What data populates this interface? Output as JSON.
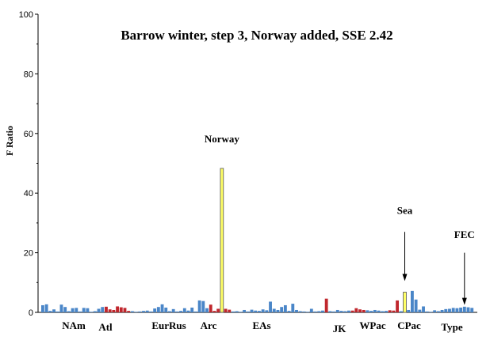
{
  "chart_data": {
    "type": "bar",
    "title": "Barrow winter, step 3, Norway added, SSE 2.42",
    "ylabel": "F Ratio",
    "xlabel": "",
    "ylim": [
      0,
      100
    ],
    "yticks": [
      0,
      20,
      40,
      60,
      80,
      100
    ],
    "grid": false,
    "colors": {
      "blue": "#4a86c8",
      "red": "#c0272d",
      "yellow": "#ffff66",
      "outline": "#555555"
    },
    "groups": [
      "NAm",
      "Atl",
      "EurRus",
      "Arc",
      "EAs",
      "JK",
      "WPac",
      "CPac",
      "Type"
    ],
    "bars": [
      {
        "v": 2.4,
        "c": "blue"
      },
      {
        "v": 2.7,
        "c": "blue"
      },
      {
        "v": 0.5,
        "c": "blue"
      },
      {
        "v": 1.0,
        "c": "blue"
      },
      {
        "v": 0.3,
        "c": "blue"
      },
      {
        "v": 2.6,
        "c": "blue"
      },
      {
        "v": 1.8,
        "c": "blue"
      },
      {
        "v": 0.4,
        "c": "blue"
      },
      {
        "v": 1.4,
        "c": "blue"
      },
      {
        "v": 1.5,
        "c": "blue"
      },
      {
        "v": 0.3,
        "c": "blue"
      },
      {
        "v": 1.5,
        "c": "blue"
      },
      {
        "v": 1.4,
        "c": "blue"
      },
      {
        "v": 0.2,
        "c": "blue"
      },
      {
        "v": 0.4,
        "c": "blue"
      },
      {
        "v": 1.2,
        "c": "blue"
      },
      {
        "v": 1.8,
        "c": "blue"
      },
      {
        "v": 1.9,
        "c": "red"
      },
      {
        "v": 1.0,
        "c": "red"
      },
      {
        "v": 0.8,
        "c": "red"
      },
      {
        "v": 2.0,
        "c": "red"
      },
      {
        "v": 1.7,
        "c": "red"
      },
      {
        "v": 1.5,
        "c": "red"
      },
      {
        "v": 0.5,
        "c": "red"
      },
      {
        "v": 0.4,
        "c": "blue"
      },
      {
        "v": 0.2,
        "c": "blue"
      },
      {
        "v": 0.3,
        "c": "blue"
      },
      {
        "v": 0.5,
        "c": "blue"
      },
      {
        "v": 0.6,
        "c": "blue"
      },
      {
        "v": 0.3,
        "c": "blue"
      },
      {
        "v": 1.3,
        "c": "blue"
      },
      {
        "v": 1.8,
        "c": "blue"
      },
      {
        "v": 2.7,
        "c": "blue"
      },
      {
        "v": 1.6,
        "c": "blue"
      },
      {
        "v": 0.4,
        "c": "blue"
      },
      {
        "v": 1.1,
        "c": "blue"
      },
      {
        "v": 0.3,
        "c": "blue"
      },
      {
        "v": 0.5,
        "c": "blue"
      },
      {
        "v": 1.4,
        "c": "blue"
      },
      {
        "v": 0.6,
        "c": "blue"
      },
      {
        "v": 1.6,
        "c": "blue"
      },
      {
        "v": 0.3,
        "c": "blue"
      },
      {
        "v": 4.0,
        "c": "blue"
      },
      {
        "v": 3.8,
        "c": "blue"
      },
      {
        "v": 1.4,
        "c": "blue"
      },
      {
        "v": 2.6,
        "c": "red"
      },
      {
        "v": 0.5,
        "c": "red"
      },
      {
        "v": 1.2,
        "c": "red"
      },
      {
        "v": 48.3,
        "c": "yellow"
      },
      {
        "v": 1.2,
        "c": "red"
      },
      {
        "v": 0.9,
        "c": "red"
      },
      {
        "v": 0.3,
        "c": "blue"
      },
      {
        "v": 0.4,
        "c": "blue"
      },
      {
        "v": 0.2,
        "c": "blue"
      },
      {
        "v": 0.8,
        "c": "blue"
      },
      {
        "v": 0.3,
        "c": "blue"
      },
      {
        "v": 0.9,
        "c": "blue"
      },
      {
        "v": 0.6,
        "c": "blue"
      },
      {
        "v": 0.5,
        "c": "blue"
      },
      {
        "v": 1.0,
        "c": "blue"
      },
      {
        "v": 0.7,
        "c": "blue"
      },
      {
        "v": 3.6,
        "c": "blue"
      },
      {
        "v": 1.2,
        "c": "blue"
      },
      {
        "v": 0.8,
        "c": "blue"
      },
      {
        "v": 1.8,
        "c": "blue"
      },
      {
        "v": 2.4,
        "c": "blue"
      },
      {
        "v": 0.5,
        "c": "blue"
      },
      {
        "v": 2.9,
        "c": "blue"
      },
      {
        "v": 0.8,
        "c": "blue"
      },
      {
        "v": 0.4,
        "c": "blue"
      },
      {
        "v": 0.3,
        "c": "blue"
      },
      {
        "v": 0.2,
        "c": "blue"
      },
      {
        "v": 1.2,
        "c": "blue"
      },
      {
        "v": 0.3,
        "c": "blue"
      },
      {
        "v": 0.4,
        "c": "blue"
      },
      {
        "v": 0.6,
        "c": "blue"
      },
      {
        "v": 4.6,
        "c": "red"
      },
      {
        "v": 0.4,
        "c": "blue"
      },
      {
        "v": 0.3,
        "c": "blue"
      },
      {
        "v": 0.8,
        "c": "blue"
      },
      {
        "v": 0.5,
        "c": "blue"
      },
      {
        "v": 0.4,
        "c": "blue"
      },
      {
        "v": 0.6,
        "c": "blue"
      },
      {
        "v": 0.6,
        "c": "red"
      },
      {
        "v": 1.4,
        "c": "red"
      },
      {
        "v": 1.0,
        "c": "red"
      },
      {
        "v": 0.8,
        "c": "red"
      },
      {
        "v": 0.7,
        "c": "blue"
      },
      {
        "v": 0.5,
        "c": "blue"
      },
      {
        "v": 0.8,
        "c": "blue"
      },
      {
        "v": 0.6,
        "c": "blue"
      },
      {
        "v": 0.4,
        "c": "blue"
      },
      {
        "v": 0.5,
        "c": "blue"
      },
      {
        "v": 0.7,
        "c": "red"
      },
      {
        "v": 0.6,
        "c": "red"
      },
      {
        "v": 4.0,
        "c": "red"
      },
      {
        "v": 0.4,
        "c": "blue"
      },
      {
        "v": 6.8,
        "c": "yellow"
      },
      {
        "v": 0.8,
        "c": "blue"
      },
      {
        "v": 7.2,
        "c": "blue"
      },
      {
        "v": 4.3,
        "c": "blue"
      },
      {
        "v": 0.9,
        "c": "blue"
      },
      {
        "v": 2.0,
        "c": "blue"
      },
      {
        "v": 0.3,
        "c": "blue"
      },
      {
        "v": 0.2,
        "c": "blue"
      },
      {
        "v": 0.7,
        "c": "blue"
      },
      {
        "v": 0.4,
        "c": "blue"
      },
      {
        "v": 0.8,
        "c": "blue"
      },
      {
        "v": 1.1,
        "c": "blue"
      },
      {
        "v": 1.2,
        "c": "blue"
      },
      {
        "v": 1.5,
        "c": "blue"
      },
      {
        "v": 1.4,
        "c": "blue"
      },
      {
        "v": 1.6,
        "c": "blue"
      },
      {
        "v": 1.9,
        "c": "blue"
      },
      {
        "v": 1.7,
        "c": "blue"
      },
      {
        "v": 1.5,
        "c": "blue"
      }
    ],
    "annotations": [
      {
        "text": "Norway",
        "bar_index": 48,
        "label_y": 57
      },
      {
        "text": "Sea",
        "bar_index": 97,
        "label_y": 33,
        "arrow_from": 27,
        "arrow_to": 10.5
      },
      {
        "text": "FEC",
        "bar_index": 113,
        "label_y": 25,
        "arrow_from": 20,
        "arrow_to": 2.5
      }
    ]
  }
}
